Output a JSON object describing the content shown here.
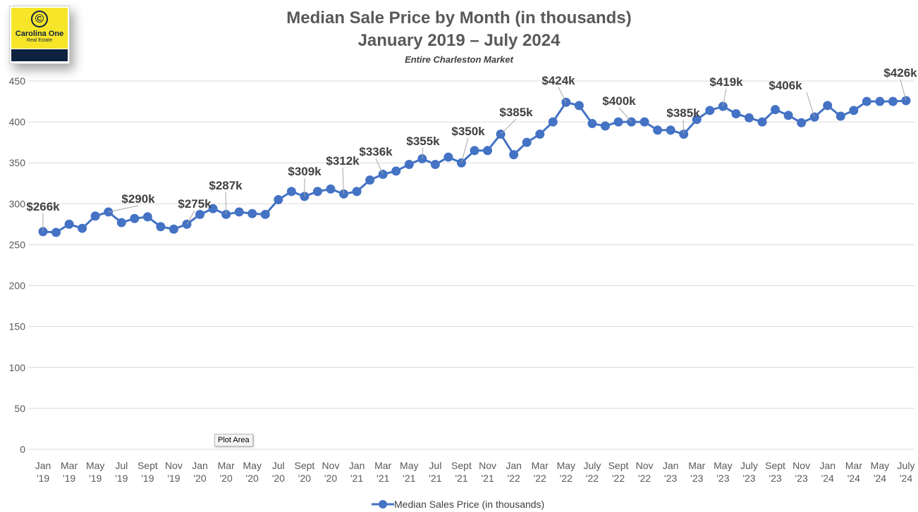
{
  "logo": {
    "brand": "Carolina One",
    "tagline": "Real Estate",
    "symbol": "©"
  },
  "tooltip": "Plot Area",
  "chart_data": {
    "type": "line",
    "title": "Median Sale Price by Month (in thousands)",
    "title_line2": "January 2019 – July 2024",
    "subtitle": "Entire Charleston Market",
    "xlabel": "",
    "ylabel": "",
    "ylim": [
      0,
      450
    ],
    "yticks": [
      0,
      50,
      100,
      150,
      200,
      250,
      300,
      350,
      400,
      450
    ],
    "grid": true,
    "legend_position": "bottom",
    "color": "#4472c4",
    "x": [
      "Jan '19",
      "Feb '19",
      "Mar '19",
      "Apr '19",
      "May '19",
      "Jun '19",
      "Jul '19",
      "Aug '19",
      "Sept '19",
      "Oct '19",
      "Nov '19",
      "Dec '19",
      "Jan '20",
      "Feb '20",
      "Mar '20",
      "Apr '20",
      "May '20",
      "Jun '20",
      "Jul '20",
      "Aug '20",
      "Sept '20",
      "Oct '20",
      "Nov '20",
      "Dec '20",
      "Jan '21",
      "Feb '21",
      "Mar '21",
      "Apr '21",
      "May '21",
      "Jun '21",
      "Jul '21",
      "Aug '21",
      "Sept '21",
      "Oct '21",
      "Nov '21",
      "Dec '21",
      "Jan '22",
      "Feb '22",
      "Mar '22",
      "Apr '22",
      "May '22",
      "Jun '22",
      "July '22",
      "Aug '22",
      "Sept '22",
      "Oct '22",
      "Nov '22",
      "Dec '22",
      "Jan '23",
      "Feb '23",
      "Mar '23",
      "Apr '23",
      "May '23",
      "Jun '23",
      "July '23",
      "Aug '23",
      "Sept '23",
      "Oct '23",
      "Nov '23",
      "Dec '23",
      "Jan '24",
      "Feb '24",
      "Mar '24",
      "Apr '24",
      "May '24",
      "Jun '24",
      "July '24"
    ],
    "xtick_labels": [
      [
        "Jan",
        "'19"
      ],
      [
        "Mar",
        "'19"
      ],
      [
        "May",
        "'19"
      ],
      [
        "Jul",
        "'19"
      ],
      [
        "Sept",
        "'19"
      ],
      [
        "Nov",
        "'19"
      ],
      [
        "Jan",
        "'20"
      ],
      [
        "Mar",
        "'20"
      ],
      [
        "May",
        "'20"
      ],
      [
        "Jul",
        "'20"
      ],
      [
        "Sept",
        "'20"
      ],
      [
        "Nov",
        "'20"
      ],
      [
        "Jan",
        "'21"
      ],
      [
        "Mar",
        "'21"
      ],
      [
        "May",
        "'21"
      ],
      [
        "Jul",
        "'21"
      ],
      [
        "Sept",
        "'21"
      ],
      [
        "Nov",
        "'21"
      ],
      [
        "Jan",
        "'22"
      ],
      [
        "Mar",
        "'22"
      ],
      [
        "May",
        "'22"
      ],
      [
        "July",
        "'22"
      ],
      [
        "Sept",
        "'22"
      ],
      [
        "Nov",
        "'22"
      ],
      [
        "Jan",
        "'23"
      ],
      [
        "Mar",
        "'23"
      ],
      [
        "May",
        "'23"
      ],
      [
        "July",
        "'23"
      ],
      [
        "Sept",
        "'23"
      ],
      [
        "Nov",
        "'23"
      ],
      [
        "Jan",
        "'24"
      ],
      [
        "Mar",
        "'24"
      ],
      [
        "May",
        "'24"
      ],
      [
        "July",
        "'24"
      ]
    ],
    "series": [
      {
        "name": "Median Sales Price (in thousands)",
        "values": [
          266,
          265,
          275,
          270,
          285,
          290,
          277,
          282,
          284,
          272,
          269,
          275,
          287,
          294,
          287,
          290,
          288,
          287,
          305,
          315,
          309,
          315,
          318,
          312,
          315,
          329,
          336,
          340,
          348,
          355,
          348,
          357,
          350,
          365,
          365,
          385,
          360,
          375,
          385,
          400,
          424,
          420,
          398,
          395,
          400,
          400,
          400,
          390,
          390,
          385,
          403,
          414,
          419,
          410,
          405,
          400,
          415,
          408,
          399,
          406,
          420,
          407,
          414,
          425,
          425,
          425,
          426
        ]
      }
    ],
    "data_labels": [
      {
        "index": 0,
        "text": "$266k"
      },
      {
        "index": 5,
        "text": "$290k"
      },
      {
        "index": 11,
        "text": "$275k"
      },
      {
        "index": 14,
        "text": "$287k"
      },
      {
        "index": 20,
        "text": "$309k"
      },
      {
        "index": 23,
        "text": "$312k"
      },
      {
        "index": 26,
        "text": "$336k"
      },
      {
        "index": 29,
        "text": "$355k"
      },
      {
        "index": 32,
        "text": "$350k"
      },
      {
        "index": 35,
        "text": "$385k"
      },
      {
        "index": 40,
        "text": "$424k"
      },
      {
        "index": 45,
        "text": "$400k"
      },
      {
        "index": 49,
        "text": "$385k"
      },
      {
        "index": 52,
        "text": "$419k"
      },
      {
        "index": 59,
        "text": "$406k"
      },
      {
        "index": 66,
        "text": "$426k"
      }
    ]
  }
}
